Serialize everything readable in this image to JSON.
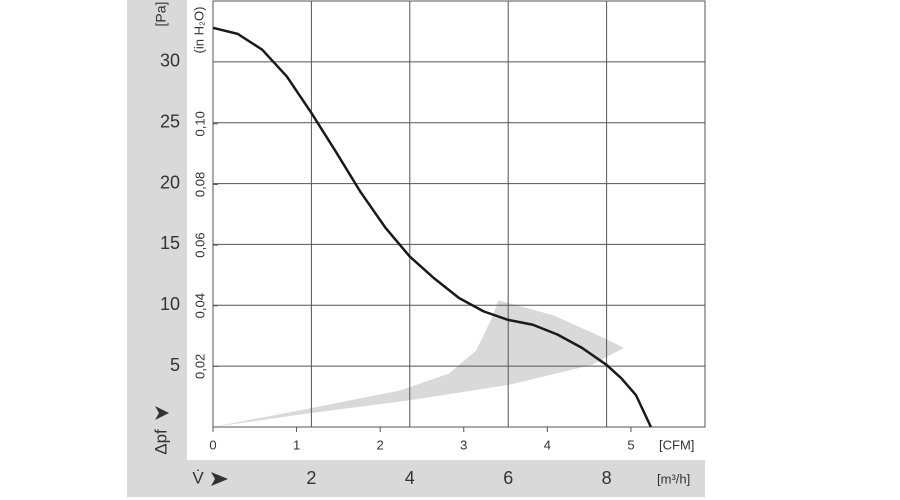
{
  "chart_data": {
    "type": "line",
    "x_symbol": "V̇",
    "x_label": "[m³/h]",
    "x2_label": "[CFM]",
    "y_symbol": "Δpf",
    "y_label": "[Pa]",
    "y2_label": "(in H₂O)",
    "xlim": [
      0,
      10
    ],
    "xticks": [
      2,
      4,
      6,
      8
    ],
    "x2lim": [
      0,
      5.886
    ],
    "x2ticks": [
      0,
      1,
      2,
      3,
      4,
      5
    ],
    "ylim": [
      0,
      35
    ],
    "yticks": [
      5,
      10,
      15,
      20,
      25,
      30
    ],
    "y2lim": [
      0,
      0.1405
    ],
    "y2ticks": [
      {
        "value": 0.02,
        "label": "0,02"
      },
      {
        "value": 0.04,
        "label": "0,04"
      },
      {
        "value": 0.06,
        "label": "0,06"
      },
      {
        "value": 0.08,
        "label": "0,08"
      },
      {
        "value": 0.1,
        "label": "0,10"
      }
    ],
    "grid": true,
    "series": [
      {
        "color": "#1a1a1a",
        "x": [
          0,
          0.5,
          1,
          1.5,
          2,
          2.5,
          3,
          3.5,
          4,
          4.5,
          5,
          5.5,
          6,
          6.5,
          7,
          7.5,
          8,
          8.3,
          8.6,
          8.9
        ],
        "values": [
          32.8,
          32.3,
          31,
          28.8,
          25.8,
          22.6,
          19.3,
          16.4,
          14,
          12.2,
          10.6,
          9.5,
          8.8,
          8.4,
          7.6,
          6.5,
          5.1,
          4,
          2.6,
          0
        ]
      }
    ],
    "operating_range": {
      "color": "#d9d9d9",
      "x": [
        0,
        1.8,
        3.8,
        4.8,
        5.35,
        5.65,
        5.8,
        6.9,
        7.9,
        8.35,
        7.7,
        6,
        4,
        2,
        0
      ],
      "y": [
        0,
        1.4,
        3,
        4.4,
        6.3,
        8.8,
        10.4,
        9.2,
        7.4,
        6.5,
        5.1,
        3.45,
        2.2,
        1.15,
        0
      ]
    }
  }
}
